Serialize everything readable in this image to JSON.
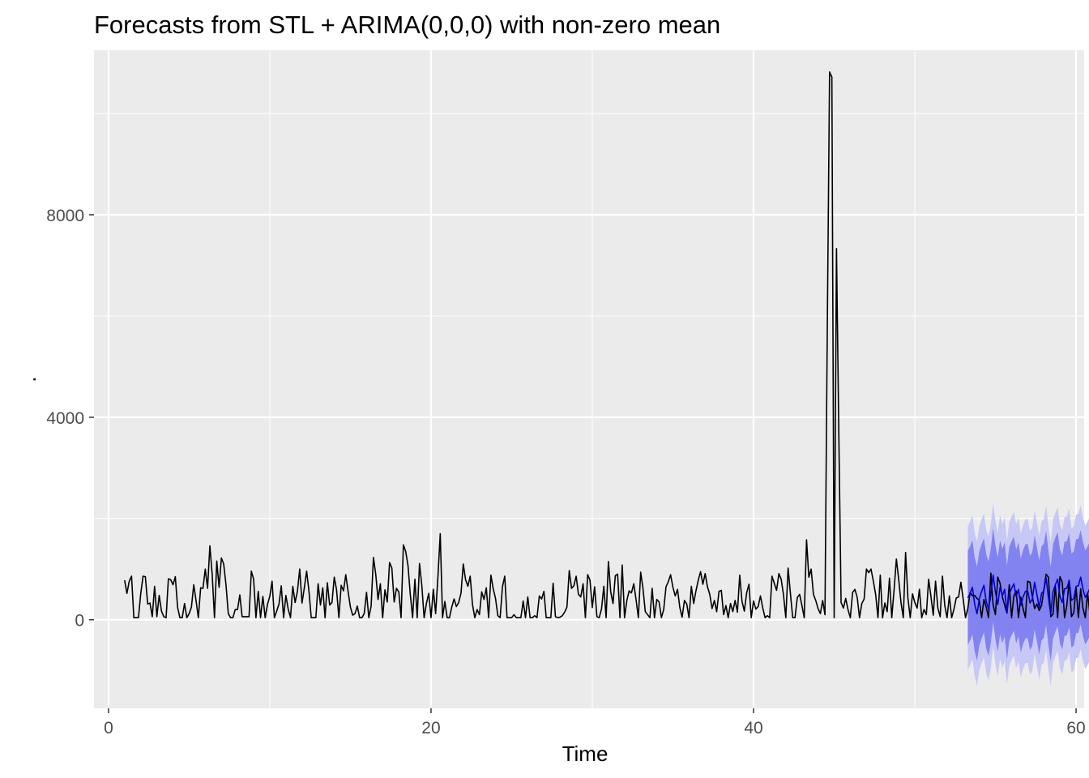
{
  "chart_data": {
    "type": "line",
    "title": "Forecasts from STL +  ARIMA(0,0,0) with non-zero mean",
    "xlabel": "Time",
    "ylabel": ".",
    "xlim": [
      -0.9,
      60.5
    ],
    "ylim": [
      -1750,
      11250
    ],
    "x_ticks": [
      0,
      20,
      40,
      60
    ],
    "x_tick_labels": [
      "0",
      "20",
      "40",
      "60"
    ],
    "y_ticks": [
      0,
      4000,
      8000
    ],
    "y_tick_labels": [
      "0",
      "4000",
      "8000"
    ],
    "grid": true,
    "legend": "none",
    "colors": {
      "panel": "#EBEBEB",
      "grid": "#FFFFFF",
      "series": "#000000",
      "forecast": "#0000CD",
      "band80": "#8282F0",
      "band95": "#C8C8F6"
    },
    "series": [
      {
        "role": "observed",
        "x_start": 1.0,
        "x_step": 0.142857,
        "values": [
          780,
          520,
          760,
          860,
          40,
          40,
          40,
          520,
          860,
          850,
          310,
          330,
          60,
          660,
          60,
          480,
          170,
          60,
          40,
          810,
          790,
          690,
          850,
          240,
          40,
          40,
          320,
          40,
          120,
          250,
          690,
          380,
          40,
          630,
          620,
          1000,
          620,
          1460,
          900,
          40,
          1160,
          640,
          1220,
          1100,
          690,
          120,
          40,
          40,
          200,
          200,
          490,
          60,
          60,
          60,
          60,
          960,
          800,
          40,
          560,
          40,
          460,
          40,
          300,
          460,
          760,
          40,
          170,
          310,
          670,
          40,
          480,
          210,
          40,
          660,
          340,
          560,
          1000,
          330,
          630,
          960,
          570,
          40,
          40,
          40,
          710,
          290,
          630,
          40,
          730,
          290,
          340,
          840,
          590,
          40,
          680,
          570,
          890,
          560,
          250,
          90,
          120,
          270,
          40,
          40,
          120,
          540,
          40,
          270,
          1230,
          900,
          400,
          710,
          40,
          590,
          350,
          1130,
          1020,
          350,
          620,
          550,
          40,
          1480,
          1350,
          1070,
          500,
          40,
          800,
          40,
          1110,
          680,
          40,
          320,
          520,
          40,
          600,
          120,
          850,
          1700,
          40,
          360,
          40,
          40,
          250,
          410,
          260,
          340,
          520,
          1100,
          790,
          660,
          860,
          300,
          40,
          200,
          100,
          550,
          400,
          630,
          40,
          880,
          610,
          420,
          80,
          40,
          650,
          860,
          40,
          40,
          40,
          100,
          40,
          40,
          40,
          370,
          40,
          450,
          40,
          40,
          80,
          40,
          470,
          410,
          560,
          40,
          40,
          40,
          720,
          60,
          40,
          50,
          80,
          150,
          250,
          970,
          620,
          670,
          860,
          500,
          450,
          710,
          40,
          890,
          780,
          240,
          650,
          60,
          40,
          210,
          660,
          40,
          1150,
          550,
          320,
          870,
          900,
          40,
          1080,
          40,
          380,
          570,
          530,
          710,
          400,
          40,
          940,
          620,
          160,
          100,
          40,
          620,
          40,
          400,
          350,
          40,
          200,
          650,
          750,
          890,
          640,
          470,
          600,
          240,
          50,
          380,
          310,
          40,
          660,
          320,
          570,
          780,
          950,
          700,
          910,
          650,
          500,
          220,
          380,
          160,
          560,
          580,
          100,
          280,
          40,
          320,
          160,
          380,
          150,
          880,
          360,
          170,
          530,
          700,
          40,
          370,
          210,
          260,
          470,
          230,
          40,
          80,
          40,
          860,
          720,
          580,
          910,
          800,
          490,
          40,
          1020,
          520,
          40,
          40,
          440,
          500,
          280,
          40,
          1580,
          840,
          1000,
          500,
          380,
          220,
          120,
          380,
          100,
          5700,
          10820,
          10720,
          40,
          7330,
          3730,
          340,
          230,
          420,
          200,
          40,
          540,
          600,
          440,
          40,
          320,
          410,
          1000,
          930,
          1000,
          760,
          500,
          40,
          880,
          40,
          330,
          160,
          820,
          40,
          590,
          1200,
          800,
          340,
          40,
          1330,
          430,
          40,
          510,
          340,
          230,
          600,
          40,
          200,
          100,
          800,
          460,
          90,
          760,
          230,
          60,
          860,
          280,
          40,
          470,
          40,
          210,
          430,
          450,
          740,
          410,
          40,
          220,
          540,
          470,
          480,
          420,
          380,
          40,
          400,
          250,
          40,
          920,
          290,
          100,
          840,
          720,
          450,
          290,
          130,
          690,
          40,
          470,
          570,
          40,
          450,
          220,
          40,
          760,
          740,
          460,
          220,
          310,
          180,
          280,
          590,
          900,
          840,
          60,
          110,
          670,
          40,
          850,
          740,
          40,
          290,
          770,
          60,
          140,
          640,
          40,
          610,
          220,
          40,
          530,
          120,
          340,
          500,
          40,
          300,
          160,
          40,
          280,
          40,
          560,
          80
        ]
      },
      {
        "role": "forecast",
        "name": "point forecast",
        "x_start": 53.2857,
        "x_step": 0.142857,
        "values": [
          430,
          520,
          640,
          300,
          120,
          420,
          560,
          680,
          360,
          220,
          480,
          880,
          540,
          300,
          640,
          470,
          600,
          140,
          510,
          620,
          710,
          460,
          600,
          280,
          450,
          560,
          570,
          330,
          410,
          740,
          500,
          240,
          520,
          570,
          830,
          430,
          110,
          560,
          690,
          800,
          460,
          340,
          610,
          620,
          780,
          380,
          420,
          660,
          670,
          840,
          600,
          440,
          520,
          620,
          560,
          570,
          650,
          480,
          300,
          700,
          520,
          440
        ]
      }
    ],
    "intervals": [
      {
        "level": "95%",
        "lower_offset": -1420,
        "upper_offset": 1420
      },
      {
        "level": "80%",
        "lower_offset": -930,
        "upper_offset": 930
      }
    ]
  }
}
